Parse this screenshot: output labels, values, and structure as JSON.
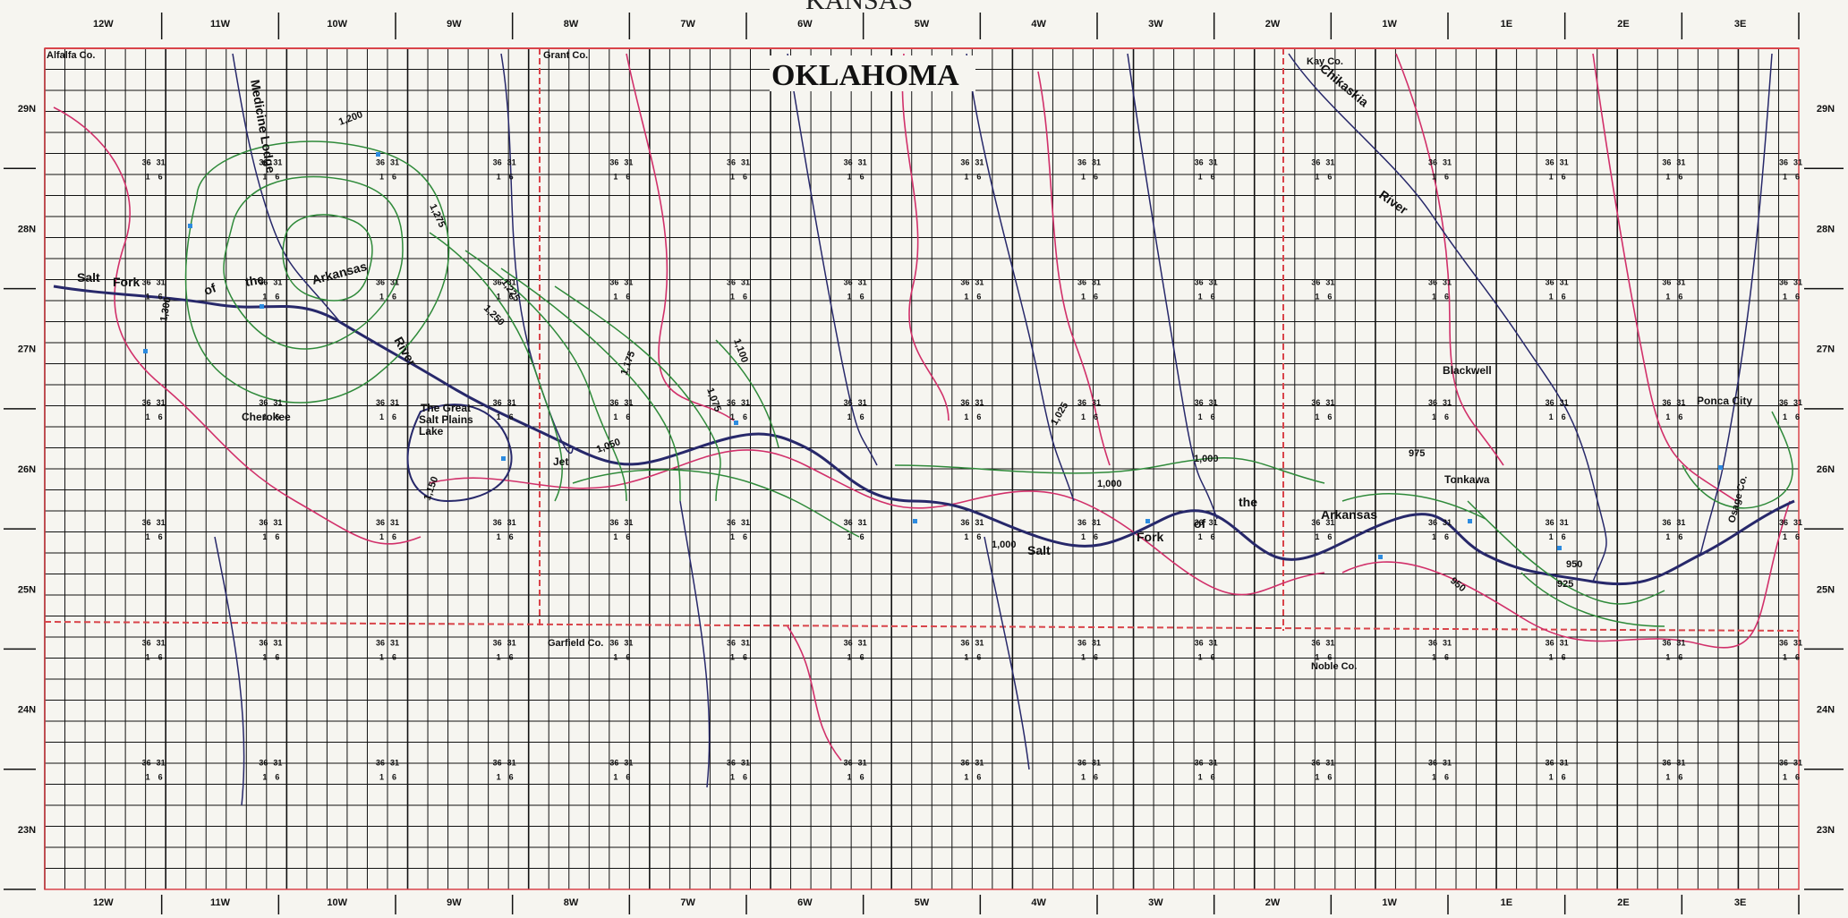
{
  "states": {
    "north": "KANSAS",
    "main": "OKLAHOMA"
  },
  "ranges": [
    "12W",
    "11W",
    "10W",
    "9W",
    "8W",
    "7W",
    "6W",
    "5W",
    "4W",
    "3W",
    "2W",
    "1W",
    "1E",
    "2E",
    "3E"
  ],
  "townships": [
    "29N",
    "28N",
    "27N",
    "26N",
    "25N",
    "24N",
    "23N"
  ],
  "counties": {
    "alfalfa": "Alfalfa Co.",
    "grant": "Grant Co.",
    "kay": "Kay Co.",
    "garfield": "Garfield Co.",
    "noble": "Noble Co.",
    "osage": "Osage Co."
  },
  "places": {
    "cherokee": "Cherokee",
    "blackwell": "Blackwell",
    "tonkawa": "Tonkawa",
    "ponca_city": "Ponca City",
    "salt_plains_1": "The Great",
    "salt_plains_2": "Salt Plains",
    "salt_plains_3": "Lake",
    "jet": "Jet"
  },
  "rivers": {
    "salt": "Salt",
    "fork": "Fork",
    "of": "of",
    "the": "the",
    "arkansas": "Arkansas",
    "river": "River",
    "medicine_lodge": "Medicine Lodge",
    "chikaskia": "Chikaskia"
  },
  "contours": [
    "1,300",
    "1,275",
    "1,250",
    "1,225",
    "1,200",
    "1,175",
    "1,150",
    "1,100",
    "1,075",
    "1,050",
    "1,025",
    "1,000",
    "975",
    "950",
    "925"
  ],
  "section_labels": {
    "a": "36",
    "b": "31",
    "c": "1",
    "d": "6"
  },
  "colors": {
    "grid": "#111111",
    "county_line": "#d9444a",
    "terrace_line": "#d1306a",
    "stream": "#27286a",
    "contour": "#2f8a3a",
    "well": "#2c8be0"
  }
}
